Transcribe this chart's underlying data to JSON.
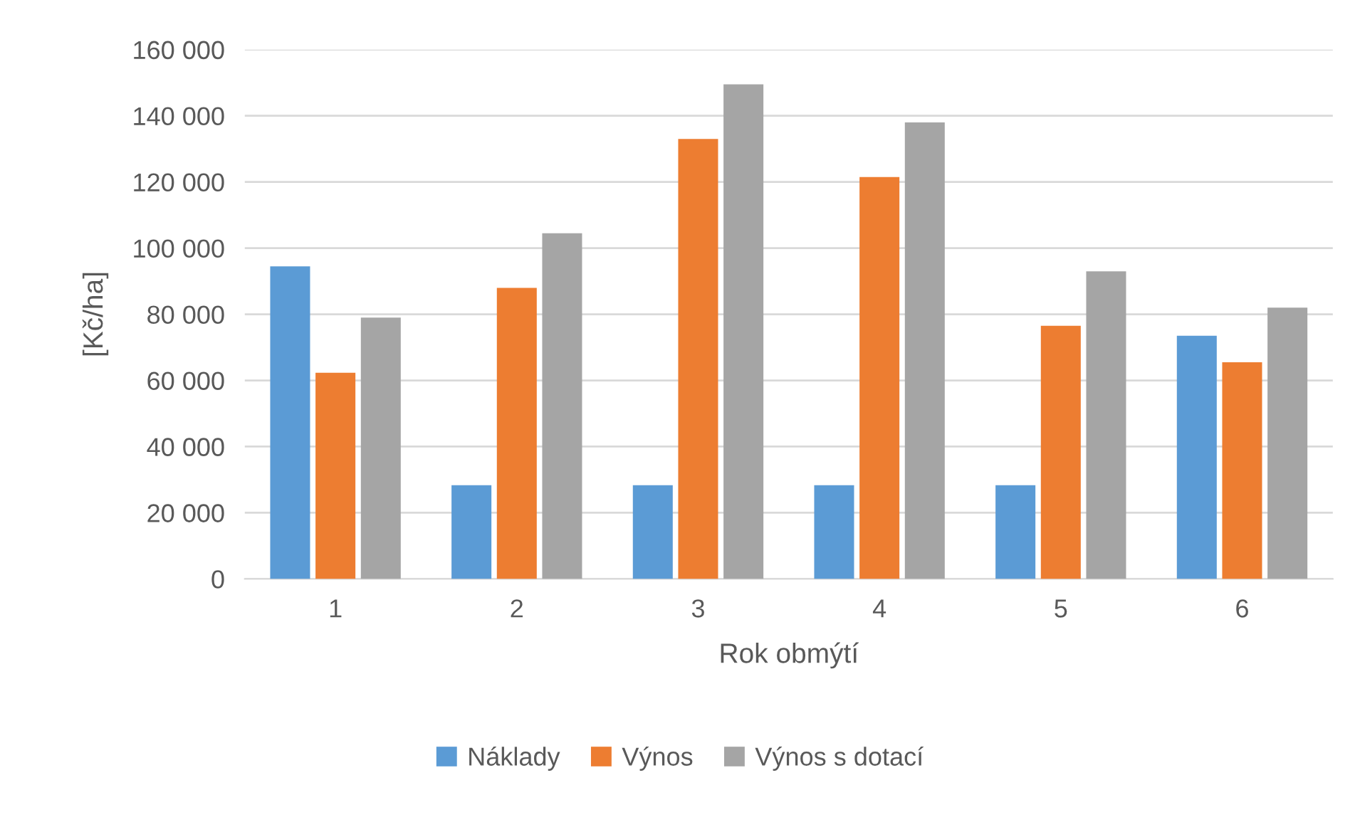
{
  "chart_data": {
    "type": "bar",
    "xlabel": "Rok obmýtí",
    "ylabel": "[Kč/ha]",
    "categories": [
      "1",
      "2",
      "3",
      "4",
      "5",
      "6"
    ],
    "series": [
      {
        "name": "Náklady",
        "color": "#5b9bd5",
        "values": [
          94500,
          28300,
          28300,
          28300,
          28300,
          73500
        ]
      },
      {
        "name": "Výnos",
        "color": "#ed7d31",
        "values": [
          62300,
          88000,
          133000,
          121500,
          76500,
          65500
        ]
      },
      {
        "name": "Výnos s dotací",
        "color": "#a5a5a5",
        "values": [
          79000,
          104500,
          149500,
          138000,
          93000,
          82000
        ]
      }
    ],
    "ylim": [
      0,
      160000
    ],
    "yticks": [
      {
        "value": 0,
        "label": "0"
      },
      {
        "value": 20000,
        "label": "20 000"
      },
      {
        "value": 40000,
        "label": "40 000"
      },
      {
        "value": 60000,
        "label": "60 000"
      },
      {
        "value": 80000,
        "label": "80 000"
      },
      {
        "value": 100000,
        "label": "100 000"
      },
      {
        "value": 120000,
        "label": "120 000"
      },
      {
        "value": 140000,
        "label": "140 000"
      },
      {
        "value": 160000,
        "label": "160 000"
      }
    ],
    "grid": "y",
    "legend": "bottom"
  }
}
